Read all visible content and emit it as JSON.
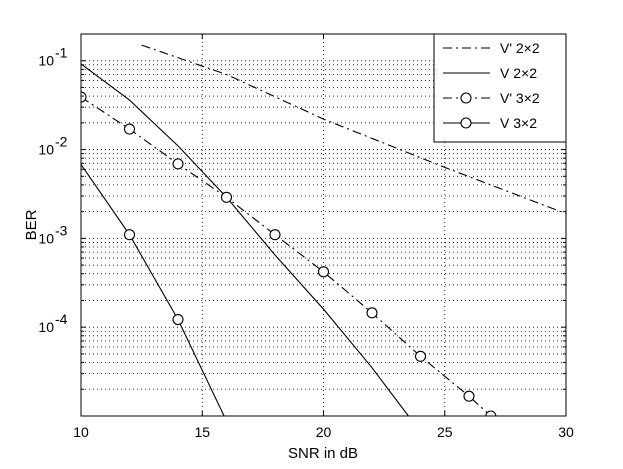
{
  "chart_data": {
    "type": "line",
    "title": "",
    "xlabel": "SNR in dB",
    "ylabel": "BER",
    "xlim": [
      10,
      30
    ],
    "ylim": [
      1e-05,
      0.2
    ],
    "yscale": "log",
    "grid": true,
    "grid_style": "dotted",
    "legend_position": "top-right",
    "x_ticks": [
      10,
      15,
      20,
      25,
      30
    ],
    "x_tick_labels": [
      "10",
      "15",
      "20",
      "25",
      "30"
    ],
    "y_ticks": [
      0.0001,
      0.001,
      0.01,
      0.1
    ],
    "y_tick_labels": [
      {
        "base": "10",
        "exp": "-4"
      },
      {
        "base": "10",
        "exp": "-3"
      },
      {
        "base": "10",
        "exp": "-2"
      },
      {
        "base": "10",
        "exp": "-1"
      }
    ],
    "series": [
      {
        "name": "V' 2×2",
        "line_style": "dashdot",
        "marker": "none",
        "x": [
          12.5,
          16,
          20,
          25,
          30
        ],
        "y": [
          0.15,
          0.07,
          0.022,
          0.0063,
          0.0019
        ]
      },
      {
        "name": "V  2×2",
        "line_style": "solid",
        "marker": "none",
        "x": [
          10,
          12,
          14,
          16,
          18,
          20,
          22,
          23.5
        ],
        "y": [
          0.092,
          0.036,
          0.011,
          0.0029,
          0.00065,
          0.00016,
          3.5e-05,
          1e-05
        ]
      },
      {
        "name": "V' 3×2",
        "line_style": "dashdot",
        "marker": "circle",
        "x": [
          10,
          12,
          14,
          16,
          18,
          20,
          22,
          24,
          26,
          26.9
        ],
        "y": [
          0.039,
          0.017,
          0.0069,
          0.0029,
          0.0011,
          0.00042,
          0.000145,
          4.7e-05,
          1.67e-05,
          1e-05
        ]
      },
      {
        "name": "V  3×2",
        "line_style": "solid",
        "marker": "circle",
        "marker_x": [
          12,
          14
        ],
        "x": [
          10,
          12,
          14,
          15.9
        ],
        "y": [
          0.0068,
          0.0011,
          0.000122,
          1e-05
        ]
      }
    ]
  }
}
